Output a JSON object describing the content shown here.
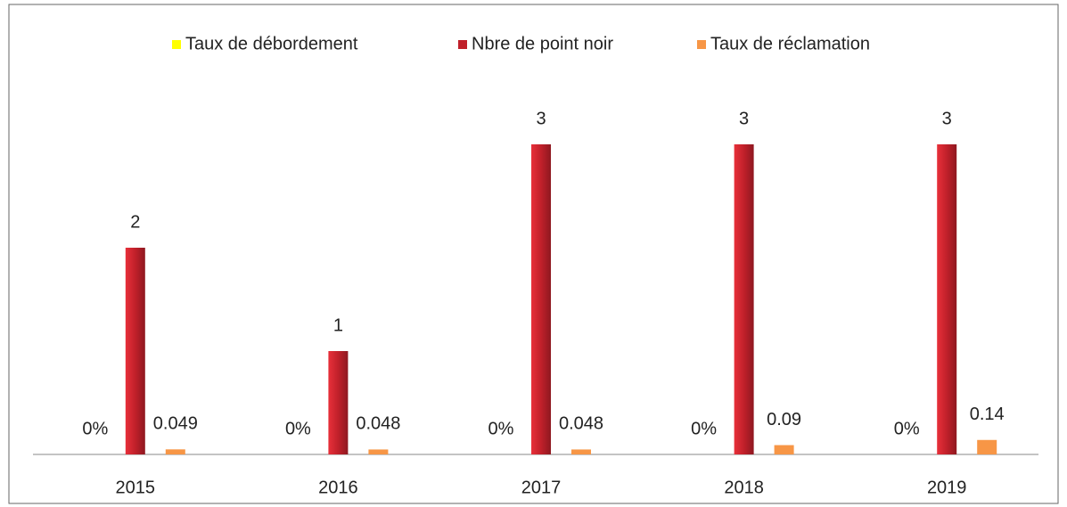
{
  "chart_data": {
    "type": "bar",
    "categories": [
      "2015",
      "2016",
      "2017",
      "2018",
      "2019"
    ],
    "series": [
      {
        "name": "Taux de débordement",
        "color": "#ffff00",
        "values": [
          0,
          0,
          0,
          0,
          0
        ],
        "value_labels": [
          "0%",
          "0%",
          "0%",
          "0%",
          "0%"
        ]
      },
      {
        "name": "Nbre de point noir",
        "color": "#c0202a",
        "values": [
          2,
          1,
          3,
          3,
          3
        ]
      },
      {
        "name": "Taux de réclamation",
        "color": "#f79646",
        "values": [
          0.049,
          0.048,
          0.048,
          0.09,
          0.14
        ]
      }
    ],
    "ylim": [
      0,
      3
    ],
    "legend": "top"
  }
}
